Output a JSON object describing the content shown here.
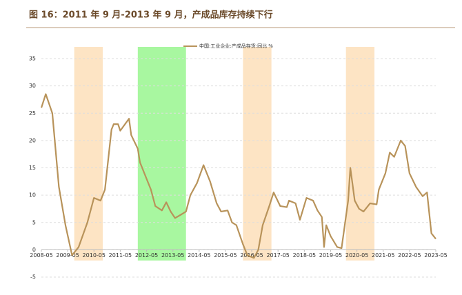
{
  "chart_data": {
    "type": "line",
    "title": "图 16：2011 年 9 月-2013 年 9 月，产成品库存持续下行",
    "x": [
      "2008-05",
      "2008-07",
      "2008-10",
      "2009-01",
      "2009-04",
      "2009-07",
      "2009-10",
      "2010-02",
      "2010-05",
      "2010-08",
      "2010-10",
      "2011-01",
      "2011-02",
      "2011-04",
      "2011-05",
      "2011-09",
      "2011-10",
      "2012-01",
      "2012-02",
      "2012-05",
      "2012-07",
      "2012-09",
      "2012-12",
      "2013-02",
      "2013-04",
      "2013-06",
      "2013-09",
      "2013-11",
      "2014-01",
      "2014-04",
      "2014-07",
      "2014-10",
      "2015-01",
      "2015-03",
      "2015-06",
      "2015-08",
      "2015-10",
      "2016-01",
      "2016-03",
      "2016-06",
      "2016-08",
      "2016-10",
      "2017-01",
      "2017-03",
      "2017-06",
      "2017-09",
      "2017-10",
      "2018-01",
      "2018-03",
      "2018-06",
      "2018-09",
      "2018-11",
      "2019-01",
      "2019-02",
      "2019-03",
      "2019-05",
      "2019-08",
      "2019-10",
      "2020-01",
      "2020-02",
      "2020-04",
      "2020-06",
      "2020-08",
      "2020-11",
      "2021-02",
      "2021-03",
      "2021-06",
      "2021-08",
      "2021-10",
      "2022-01",
      "2022-03",
      "2022-05",
      "2022-08",
      "2022-11",
      "2023-01",
      "2023-03",
      "2023-05"
    ],
    "series": [
      {
        "name": "中国:工业企业:产成品存货:同比 %",
        "color": "#b8935a",
        "values": [
          26,
          28.5,
          25,
          11.5,
          4.5,
          -1,
          0.5,
          5,
          9.5,
          9,
          11,
          22,
          23,
          23,
          21.8,
          24,
          21,
          18.5,
          16,
          13,
          11,
          8,
          7.2,
          8.7,
          7,
          5.8,
          6.5,
          7,
          10,
          12.2,
          15.5,
          12.5,
          8.5,
          7,
          7.2,
          5,
          4.5,
          1,
          -1,
          -1.5,
          0,
          4.5,
          8,
          10.5,
          8,
          7.8,
          9,
          8.5,
          5.5,
          9.5,
          9,
          7.2,
          6,
          0.5,
          4.5,
          2.5,
          0.5,
          0.3,
          9,
          15,
          9,
          7.5,
          7,
          8.5,
          8.3,
          11,
          14,
          17.8,
          17,
          20,
          19,
          14,
          11.5,
          9.8,
          10.5,
          3,
          2
        ]
      }
    ],
    "shaded_periods": [
      {
        "start": "2009-08",
        "end": "2010-09",
        "color": "#fde4c4"
      },
      {
        "start": "2012-01",
        "end": "2013-11",
        "color": "#a8f7a0"
      },
      {
        "start": "2016-01",
        "end": "2017-02",
        "color": "#fde4c4"
      },
      {
        "start": "2019-12",
        "end": "2021-01",
        "color": "#fde4c4"
      }
    ],
    "xlim": [
      "2008-05",
      "2023-05"
    ],
    "xticks": [
      "2008-05",
      "2009-05",
      "2010-05",
      "2011-05",
      "2012-05",
      "2013-05",
      "2014-05",
      "2015-05",
      "2016-05",
      "2017-05",
      "2018-05",
      "2019-05",
      "2020-05",
      "2021-05",
      "2022-05",
      "2023-05"
    ],
    "ylim": [
      -5,
      35
    ],
    "yticks": [
      -5,
      0,
      5,
      10,
      15,
      20,
      25,
      30,
      35
    ],
    "grid": true
  }
}
